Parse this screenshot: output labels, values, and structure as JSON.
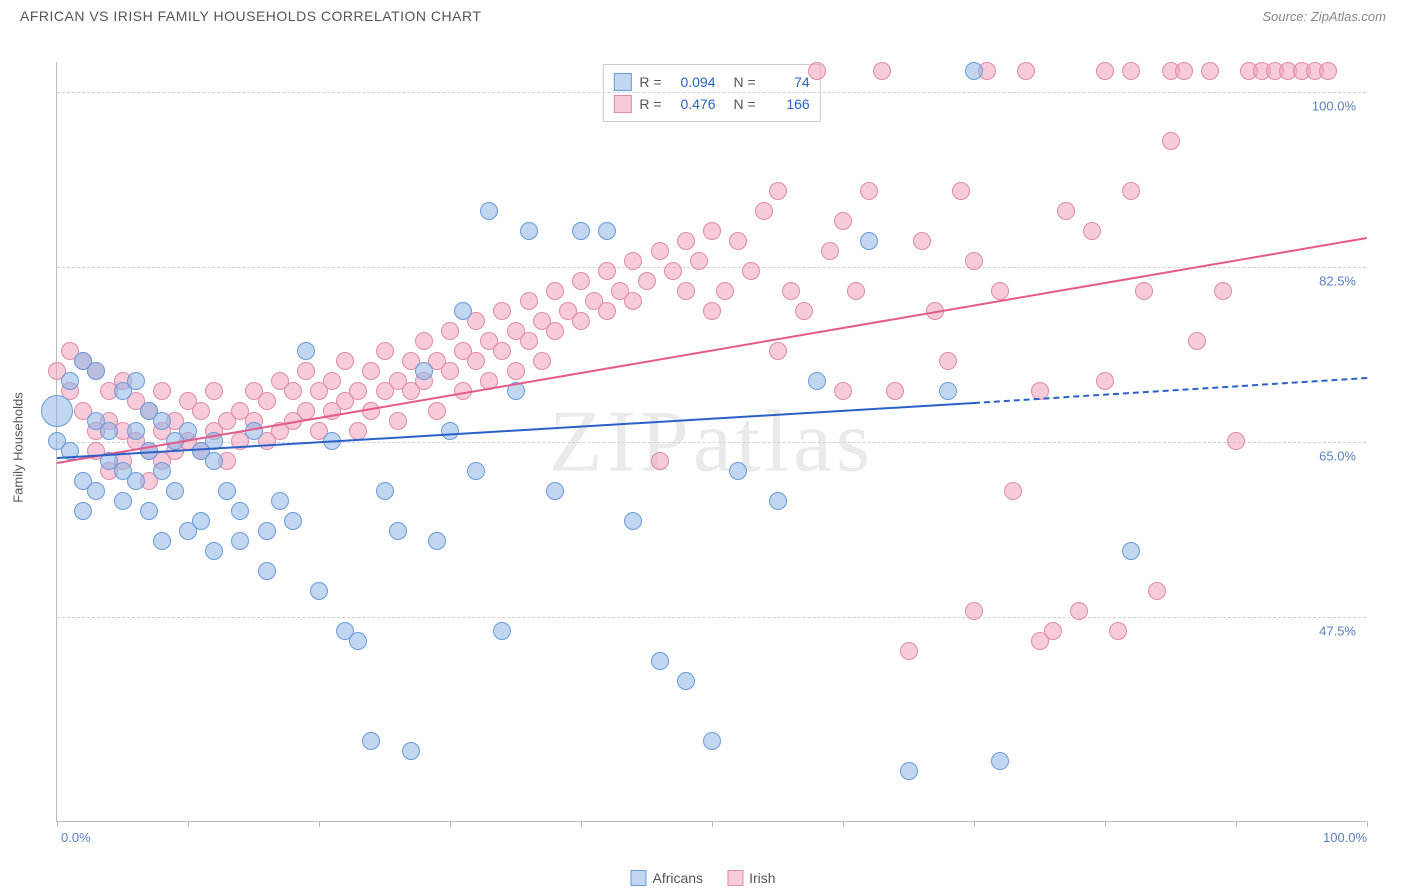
{
  "header": {
    "title": "AFRICAN VS IRISH FAMILY HOUSEHOLDS CORRELATION CHART",
    "source_prefix": "Source: ",
    "source_name": "ZipAtlas.com"
  },
  "chart": {
    "type": "scatter",
    "watermark": "ZIPatlas",
    "ylabel": "Family Households",
    "xlim": [
      0,
      100
    ],
    "ylim": [
      27,
      103
    ],
    "xtick_positions": [
      0,
      10,
      20,
      30,
      40,
      50,
      60,
      70,
      80,
      90,
      100
    ],
    "xtick_labels_shown": {
      "0": "0.0%",
      "100": "100.0%"
    },
    "yticks": [
      47.5,
      65.0,
      82.5,
      100.0
    ],
    "ytick_labels": [
      "47.5%",
      "65.0%",
      "82.5%",
      "100.0%"
    ],
    "gridline_color": "#d0d0d0",
    "axis_color": "#bbbbbb",
    "label_color": "#5b7fbe",
    "background_color": "#ffffff",
    "point_radius": 9,
    "point_radius_large": 16,
    "series": {
      "africans": {
        "label": "Africans",
        "fill": "rgba(140,180,230,0.55)",
        "stroke": "#6b9bd8",
        "trend_color": "#2a62c9",
        "R": "0.094",
        "N": "74",
        "trend": {
          "x1": 0,
          "y1": 63.5,
          "x2": 70,
          "y2": 69.0
        },
        "trend_ext": {
          "x1": 70,
          "y1": 69.0,
          "x2": 100,
          "y2": 71.5
        },
        "points": [
          [
            0,
            68,
            16
          ],
          [
            0,
            65
          ],
          [
            1,
            71
          ],
          [
            1,
            64
          ],
          [
            2,
            73
          ],
          [
            2,
            61
          ],
          [
            2,
            58
          ],
          [
            3,
            72
          ],
          [
            3,
            67
          ],
          [
            3,
            60
          ],
          [
            4,
            66
          ],
          [
            4,
            63
          ],
          [
            5,
            70
          ],
          [
            5,
            62
          ],
          [
            5,
            59
          ],
          [
            6,
            71
          ],
          [
            6,
            66
          ],
          [
            6,
            61
          ],
          [
            7,
            68
          ],
          [
            7,
            64
          ],
          [
            7,
            58
          ],
          [
            8,
            67
          ],
          [
            8,
            62
          ],
          [
            8,
            55
          ],
          [
            9,
            65
          ],
          [
            9,
            60
          ],
          [
            10,
            66
          ],
          [
            10,
            56
          ],
          [
            11,
            64
          ],
          [
            11,
            57
          ],
          [
            12,
            65
          ],
          [
            12,
            63
          ],
          [
            12,
            54
          ],
          [
            13,
            60
          ],
          [
            14,
            55
          ],
          [
            14,
            58
          ],
          [
            15,
            66
          ],
          [
            16,
            56
          ],
          [
            16,
            52
          ],
          [
            17,
            59
          ],
          [
            18,
            57
          ],
          [
            19,
            74
          ],
          [
            20,
            50
          ],
          [
            21,
            65
          ],
          [
            22,
            46
          ],
          [
            23,
            45
          ],
          [
            24,
            35
          ],
          [
            25,
            60
          ],
          [
            26,
            56
          ],
          [
            27,
            34
          ],
          [
            28,
            72
          ],
          [
            29,
            55
          ],
          [
            30,
            66
          ],
          [
            31,
            78
          ],
          [
            32,
            62
          ],
          [
            33,
            88
          ],
          [
            34,
            46
          ],
          [
            35,
            70
          ],
          [
            36,
            86
          ],
          [
            38,
            60
          ],
          [
            40,
            86
          ],
          [
            42,
            86
          ],
          [
            44,
            57
          ],
          [
            46,
            43
          ],
          [
            48,
            41
          ],
          [
            50,
            35
          ],
          [
            52,
            62
          ],
          [
            55,
            59
          ],
          [
            58,
            71
          ],
          [
            62,
            85
          ],
          [
            65,
            32
          ],
          [
            68,
            70
          ],
          [
            70,
            102
          ],
          [
            72,
            33
          ],
          [
            82,
            54
          ]
        ]
      },
      "irish": {
        "label": "Irish",
        "fill": "rgba(240,160,185,0.55)",
        "stroke": "#e08ba8",
        "trend_color": "#e45a88",
        "R": "0.476",
        "N": "166",
        "trend": {
          "x1": 0,
          "y1": 63.0,
          "x2": 100,
          "y2": 85.5
        },
        "points": [
          [
            0,
            72
          ],
          [
            1,
            74
          ],
          [
            1,
            70
          ],
          [
            2,
            73
          ],
          [
            2,
            68
          ],
          [
            3,
            72
          ],
          [
            3,
            66
          ],
          [
            3,
            64
          ],
          [
            4,
            70
          ],
          [
            4,
            67
          ],
          [
            4,
            62
          ],
          [
            5,
            71
          ],
          [
            5,
            66
          ],
          [
            5,
            63
          ],
          [
            6,
            69
          ],
          [
            6,
            65
          ],
          [
            7,
            68
          ],
          [
            7,
            64
          ],
          [
            7,
            61
          ],
          [
            8,
            70
          ],
          [
            8,
            66
          ],
          [
            8,
            63
          ],
          [
            9,
            67
          ],
          [
            9,
            64
          ],
          [
            10,
            69
          ],
          [
            10,
            65
          ],
          [
            11,
            68
          ],
          [
            11,
            64
          ],
          [
            12,
            70
          ],
          [
            12,
            66
          ],
          [
            13,
            67
          ],
          [
            13,
            63
          ],
          [
            14,
            68
          ],
          [
            14,
            65
          ],
          [
            15,
            70
          ],
          [
            15,
            67
          ],
          [
            16,
            69
          ],
          [
            16,
            65
          ],
          [
            17,
            71
          ],
          [
            17,
            66
          ],
          [
            18,
            70
          ],
          [
            18,
            67
          ],
          [
            19,
            72
          ],
          [
            19,
            68
          ],
          [
            20,
            70
          ],
          [
            20,
            66
          ],
          [
            21,
            71
          ],
          [
            21,
            68
          ],
          [
            22,
            73
          ],
          [
            22,
            69
          ],
          [
            23,
            70
          ],
          [
            23,
            66
          ],
          [
            24,
            72
          ],
          [
            24,
            68
          ],
          [
            25,
            74
          ],
          [
            25,
            70
          ],
          [
            26,
            71
          ],
          [
            26,
            67
          ],
          [
            27,
            73
          ],
          [
            27,
            70
          ],
          [
            28,
            75
          ],
          [
            28,
            71
          ],
          [
            29,
            73
          ],
          [
            29,
            68
          ],
          [
            30,
            76
          ],
          [
            30,
            72
          ],
          [
            31,
            74
          ],
          [
            31,
            70
          ],
          [
            32,
            77
          ],
          [
            32,
            73
          ],
          [
            33,
            75
          ],
          [
            33,
            71
          ],
          [
            34,
            78
          ],
          [
            34,
            74
          ],
          [
            35,
            76
          ],
          [
            35,
            72
          ],
          [
            36,
            79
          ],
          [
            36,
            75
          ],
          [
            37,
            77
          ],
          [
            37,
            73
          ],
          [
            38,
            80
          ],
          [
            38,
            76
          ],
          [
            39,
            78
          ],
          [
            40,
            81
          ],
          [
            40,
            77
          ],
          [
            41,
            79
          ],
          [
            42,
            82
          ],
          [
            42,
            78
          ],
          [
            43,
            80
          ],
          [
            44,
            83
          ],
          [
            44,
            79
          ],
          [
            45,
            81
          ],
          [
            46,
            84
          ],
          [
            46,
            63
          ],
          [
            47,
            82
          ],
          [
            48,
            85
          ],
          [
            48,
            80
          ],
          [
            49,
            83
          ],
          [
            50,
            86
          ],
          [
            50,
            78
          ],
          [
            51,
            80
          ],
          [
            52,
            85
          ],
          [
            53,
            82
          ],
          [
            54,
            88
          ],
          [
            55,
            90
          ],
          [
            55,
            74
          ],
          [
            56,
            80
          ],
          [
            57,
            78
          ],
          [
            58,
            102
          ],
          [
            59,
            84
          ],
          [
            60,
            87
          ],
          [
            60,
            70
          ],
          [
            61,
            80
          ],
          [
            62,
            90
          ],
          [
            63,
            102
          ],
          [
            64,
            70
          ],
          [
            65,
            44
          ],
          [
            66,
            85
          ],
          [
            67,
            78
          ],
          [
            68,
            73
          ],
          [
            69,
            90
          ],
          [
            70,
            83
          ],
          [
            70,
            48
          ],
          [
            71,
            102
          ],
          [
            72,
            80
          ],
          [
            73,
            60
          ],
          [
            74,
            102
          ],
          [
            75,
            70
          ],
          [
            75,
            45
          ],
          [
            76,
            46
          ],
          [
            77,
            88
          ],
          [
            78,
            48
          ],
          [
            79,
            86
          ],
          [
            80,
            71
          ],
          [
            80,
            102
          ],
          [
            81,
            46
          ],
          [
            82,
            102
          ],
          [
            82,
            90
          ],
          [
            83,
            80
          ],
          [
            84,
            50
          ],
          [
            85,
            95
          ],
          [
            85,
            102
          ],
          [
            86,
            102
          ],
          [
            87,
            75
          ],
          [
            88,
            102
          ],
          [
            89,
            80
          ],
          [
            90,
            65
          ],
          [
            91,
            102
          ],
          [
            92,
            102
          ],
          [
            93,
            102
          ],
          [
            94,
            102
          ],
          [
            95,
            102
          ],
          [
            96,
            102
          ],
          [
            97,
            102
          ]
        ]
      }
    },
    "correlation_legend": {
      "r_label": "R =",
      "n_label": "N ="
    },
    "bottom_legend": [
      "africans",
      "irish"
    ]
  }
}
